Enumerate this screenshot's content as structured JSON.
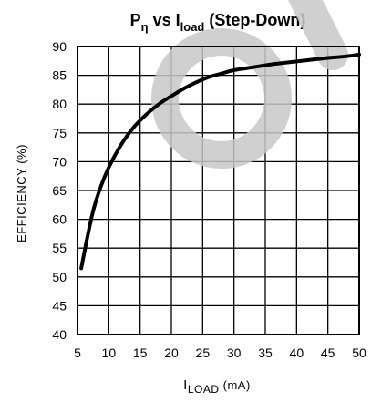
{
  "chart_data": {
    "type": "line",
    "title": {
      "p": "P",
      "p_sub": "η",
      "vs": " vs I",
      "i_sub": "load",
      "rest": " (Step-Down)"
    },
    "xlabel": {
      "main": "I",
      "sub": "LOAD",
      "unit": " (mA)"
    },
    "ylabel": "EFFICIENCY (%)",
    "xlim": [
      5,
      50
    ],
    "ylim": [
      40,
      90
    ],
    "xticks": [
      5,
      10,
      15,
      20,
      25,
      30,
      35,
      40,
      45,
      50
    ],
    "yticks": [
      40,
      45,
      50,
      55,
      60,
      65,
      70,
      75,
      80,
      85,
      90
    ],
    "grid": true,
    "series": [
      {
        "x": [
          5.6,
          6.5,
          7.5,
          8.5,
          10,
          12,
          14,
          16,
          18,
          20,
          22,
          24,
          26,
          28,
          30,
          33,
          36,
          40,
          44,
          48,
          50
        ],
        "y": [
          51.5,
          56.5,
          61.5,
          65,
          69,
          73,
          76,
          78.2,
          80,
          81.4,
          82.7,
          83.8,
          84.7,
          85.3,
          85.9,
          86.4,
          86.9,
          87.4,
          87.9,
          88.3,
          88.6
        ],
        "color": "#000000"
      }
    ],
    "watermark_color": "#c8c8c8"
  }
}
